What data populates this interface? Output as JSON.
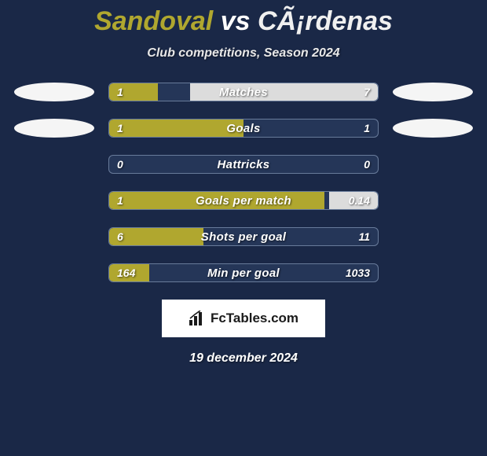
{
  "background_color": "#1a2847",
  "title": {
    "player1": "Sandoval",
    "vs": "vs",
    "player2": "CÃ¡rdenas",
    "player1_color": "#b0a72f",
    "player2_color": "#f0f0f0",
    "fontsize": 34
  },
  "subtitle": "Club competitions, Season 2024",
  "badge_color": "#f5f5f5",
  "bar_border_color": "rgba(150,170,200,0.6)",
  "bar_bg_color": "rgba(60,80,120,0.35)",
  "left_fill_color": "#b0a72f",
  "right_fill_color": "#dcdcdc",
  "label_fontsize": 15,
  "value_fontsize": 14,
  "rows": [
    {
      "label": "Matches",
      "left_value": "1",
      "right_value": "7",
      "left_pct": 18,
      "right_pct": 70,
      "show_badges": true
    },
    {
      "label": "Goals",
      "left_value": "1",
      "right_value": "1",
      "left_pct": 50,
      "right_pct": 0,
      "show_badges": true
    },
    {
      "label": "Hattricks",
      "left_value": "0",
      "right_value": "0",
      "left_pct": 0,
      "right_pct": 0,
      "show_badges": false
    },
    {
      "label": "Goals per match",
      "left_value": "1",
      "right_value": "0.14",
      "left_pct": 80,
      "right_pct": 18,
      "show_badges": false
    },
    {
      "label": "Shots per goal",
      "left_value": "6",
      "right_value": "11",
      "left_pct": 35,
      "right_pct": 0,
      "show_badges": false
    },
    {
      "label": "Min per goal",
      "left_value": "164",
      "right_value": "1033",
      "left_pct": 15,
      "right_pct": 0,
      "show_badges": false
    }
  ],
  "logo_text": "FcTables.com",
  "date": "19 december 2024"
}
